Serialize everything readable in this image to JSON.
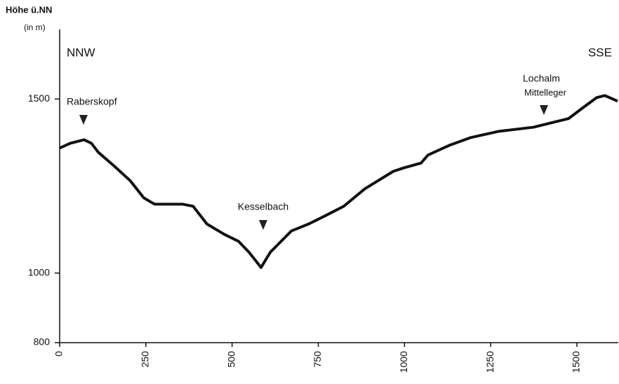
{
  "chart_data": {
    "type": "line",
    "ylabel": "Höhe ü.NN",
    "yunit": "(in m)",
    "x": [
      0,
      31,
      71,
      92,
      112,
      153,
      204,
      244,
      275,
      356,
      387,
      427,
      478,
      519,
      549,
      584,
      611,
      672,
      722,
      763,
      824,
      885,
      967,
      997,
      1048,
      1068,
      1130,
      1191,
      1272,
      1374,
      1476,
      1516,
      1557,
      1581,
      1618
    ],
    "series": [
      {
        "color": "#111111",
        "values": [
          1359,
          1373,
          1383,
          1373,
          1347,
          1312,
          1266,
          1216,
          1198,
          1198,
          1192,
          1141,
          1111,
          1091,
          1060,
          1016,
          1060,
          1121,
          1141,
          1161,
          1192,
          1242,
          1292,
          1302,
          1316,
          1339,
          1367,
          1389,
          1407,
          1419,
          1444,
          1474,
          1504,
          1510,
          1494
        ]
      }
    ],
    "xlim": [
      0,
      1620
    ],
    "xticks": [
      0,
      250,
      500,
      750,
      1000,
      1250,
      1500
    ],
    "ylim": [
      800,
      1700
    ],
    "yticks": [
      800,
      1000,
      1500
    ],
    "annotations": {
      "left": "NNW",
      "right": "SSE",
      "peak1": "Raberskopf",
      "valley": "Kesselbach",
      "peak2a": "Lochalm",
      "peak2b": "Mittelleger"
    }
  }
}
